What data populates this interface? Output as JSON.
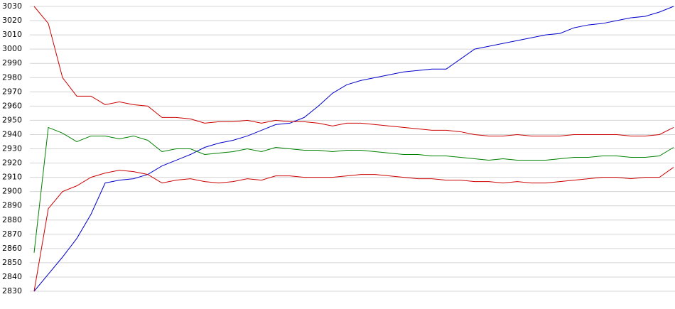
{
  "chart_data": {
    "type": "line",
    "ylim": [
      2830,
      3030
    ],
    "yticks": [
      2830,
      2840,
      2850,
      2860,
      2870,
      2880,
      2890,
      2900,
      2910,
      2920,
      2930,
      2940,
      2950,
      2960,
      2970,
      2980,
      2990,
      3000,
      3010,
      3020,
      3030
    ],
    "grid": true,
    "series": [
      {
        "color": "#0000cc",
        "values": [
          2830,
          2842,
          2854,
          2867,
          2884,
          2906,
          2908,
          2909,
          2912,
          2918,
          2922,
          2926,
          2931,
          2934,
          2936,
          2939,
          2943,
          2947,
          2948,
          2952,
          2960,
          2969,
          2975,
          2978,
          2980,
          2982,
          2984,
          2985,
          2986,
          2986,
          2993,
          3000,
          3002,
          3004,
          3006,
          3008,
          3010,
          3011,
          3015,
          3017,
          3018,
          3020,
          3022,
          3023,
          3026,
          3030
        ]
      },
      {
        "color": "#cc0000",
        "values": [
          3030,
          3018,
          2980,
          2967,
          2967,
          2961,
          2963,
          2961,
          2960,
          2952,
          2952,
          2951,
          2948,
          2949,
          2949,
          2950,
          2948,
          2950,
          2949,
          2949,
          2948,
          2946,
          2948,
          2948,
          2947,
          2946,
          2945,
          2944,
          2943,
          2943,
          2942,
          2940,
          2939,
          2939,
          2940,
          2939,
          2939,
          2939,
          2940,
          2940,
          2940,
          2940,
          2939,
          2939,
          2940,
          2945
        ]
      },
      {
        "color": "#008000",
        "values": [
          2857,
          2945,
          2941,
          2935,
          2939,
          2939,
          2937,
          2939,
          2936,
          2928,
          2930,
          2930,
          2926,
          2927,
          2928,
          2930,
          2928,
          2931,
          2930,
          2929,
          2929,
          2928,
          2929,
          2929,
          2928,
          2927,
          2926,
          2926,
          2925,
          2925,
          2924,
          2923,
          2922,
          2923,
          2922,
          2922,
          2922,
          2923,
          2924,
          2924,
          2925,
          2925,
          2924,
          2924,
          2925,
          2931
        ]
      },
      {
        "color": "#cc0000",
        "values": [
          2830,
          2888,
          2900,
          2904,
          2910,
          2913,
          2915,
          2914,
          2912,
          2906,
          2908,
          2909,
          2907,
          2906,
          2907,
          2909,
          2908,
          2911,
          2911,
          2910,
          2910,
          2910,
          2911,
          2912,
          2912,
          2911,
          2910,
          2909,
          2909,
          2908,
          2908,
          2907,
          2907,
          2906,
          2907,
          2906,
          2906,
          2907,
          2908,
          2909,
          2910,
          2910,
          2909,
          2910,
          2910,
          2917
        ]
      }
    ]
  }
}
